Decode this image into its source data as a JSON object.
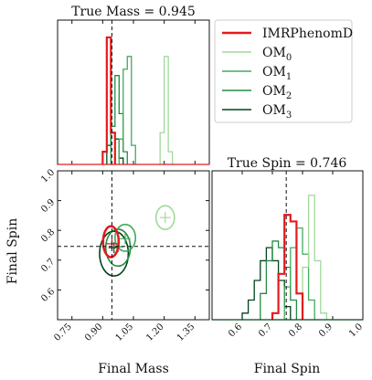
{
  "chart_data": {
    "type": "corner",
    "titles": {
      "mass": "True Mass = 0.945",
      "spin": "True Spin = 0.746"
    },
    "axis_labels": {
      "x_left": "Final Mass",
      "x_right": "Final Spin",
      "y": "Final Spin"
    },
    "true_values": {
      "mass": 0.945,
      "spin": 0.746
    },
    "mass_axis": {
      "range": [
        0.68,
        1.42
      ],
      "ticks": [
        "0.75",
        "0.90",
        "1.05",
        "1.20",
        "1.35"
      ],
      "tick_values": [
        0.75,
        0.9,
        1.05,
        1.2,
        1.35
      ]
    },
    "spin_axis": {
      "range": [
        0.5,
        1.0
      ],
      "ticks": [
        "0.6",
        "0.7",
        "0.8",
        "0.9",
        "1.0"
      ],
      "tick_values": [
        0.6,
        0.7,
        0.8,
        0.9,
        1.0
      ]
    },
    "series": [
      {
        "name": "IMRPhenomD",
        "sub": "",
        "color": "#e41a1c",
        "width": 2.2,
        "mass_hist": {
          "bins": [
            0.9,
            0.92,
            0.94,
            0.96
          ],
          "heights": [
            0.1,
            1.0,
            0.25
          ]
        },
        "spin_hist": {
          "bins": [
            0.7,
            0.72,
            0.74,
            0.76,
            0.78,
            0.8
          ],
          "heights": [
            0.05,
            0.35,
            0.8,
            0.75,
            0.2
          ]
        },
        "contours": [
          {
            "cx": 0.94,
            "cy": 0.762,
            "rx": 0.038,
            "ry": 0.052
          }
        ],
        "center": {
          "x": 0.945,
          "y": 0.755
        }
      },
      {
        "name": "OM",
        "sub": "0",
        "color": "#a1d99b",
        "width": 1.3,
        "mass_hist": {
          "bins": [
            1.18,
            1.2,
            1.22,
            1.24
          ],
          "heights": [
            0.25,
            0.85,
            0.1
          ]
        },
        "spin_hist": {
          "bins": [
            0.8,
            0.82,
            0.84,
            0.86,
            0.88
          ],
          "heights": [
            0.4,
            0.95,
            0.45,
            0.05
          ]
        },
        "contours": [
          {
            "cx": 1.205,
            "cy": 0.843,
            "rx": 0.045,
            "ry": 0.04
          }
        ],
        "center": {
          "x": 1.205,
          "y": 0.843
        }
      },
      {
        "name": "OM",
        "sub": "1",
        "color": "#41ab5d",
        "width": 1.3,
        "mass_hist": {
          "bins": [
            0.98,
            1.0,
            1.02,
            1.04,
            1.06
          ],
          "heights": [
            0.2,
            0.75,
            0.85,
            0.15
          ]
        },
        "spin_hist": {
          "bins": [
            0.74,
            0.76,
            0.78,
            0.8,
            0.82,
            0.84
          ],
          "heights": [
            0.25,
            0.55,
            0.7,
            0.5,
            0.15
          ]
        },
        "contours": [
          {
            "cx": 1.01,
            "cy": 0.775,
            "rx": 0.05,
            "ry": 0.045
          }
        ],
        "center": {
          "x": 1.01,
          "y": 0.772
        }
      },
      {
        "name": "OM",
        "sub": "2",
        "color": "#238b45",
        "width": 1.3,
        "mass_hist": {
          "bins": [
            0.94,
            0.96,
            0.98,
            1.0,
            1.02
          ],
          "heights": [
            0.3,
            0.7,
            0.4,
            0.1
          ]
        },
        "spin_hist": {
          "bins": [
            0.66,
            0.68,
            0.7,
            0.72,
            0.74,
            0.76,
            0.78
          ],
          "heights": [
            0.2,
            0.45,
            0.6,
            0.55,
            0.4,
            0.15
          ]
        },
        "contours": [
          {
            "cx": 0.975,
            "cy": 0.742,
            "rx": 0.06,
            "ry": 0.062
          }
        ],
        "center": {
          "x": 0.975,
          "y": 0.745
        }
      },
      {
        "name": "OM",
        "sub": "3",
        "color": "#00441b",
        "width": 1.3,
        "mass_hist": {
          "bins": [
            0.92,
            0.94,
            0.96,
            0.98,
            1.0
          ],
          "heights": [
            0.15,
            0.25,
            0.2,
            0.05
          ]
        },
        "spin_hist": {
          "bins": [
            0.6,
            0.62,
            0.64,
            0.66,
            0.68,
            0.7,
            0.72,
            0.74,
            0.76
          ],
          "heights": [
            0.05,
            0.15,
            0.3,
            0.45,
            0.55,
            0.45,
            0.3,
            0.1
          ]
        },
        "contours": [
          {
            "cx": 0.955,
            "cy": 0.722,
            "rx": 0.07,
            "ry": 0.075
          }
        ],
        "center": {
          "x": 0.955,
          "y": 0.742
        }
      }
    ],
    "legend_position": "top-right",
    "grid": false
  }
}
